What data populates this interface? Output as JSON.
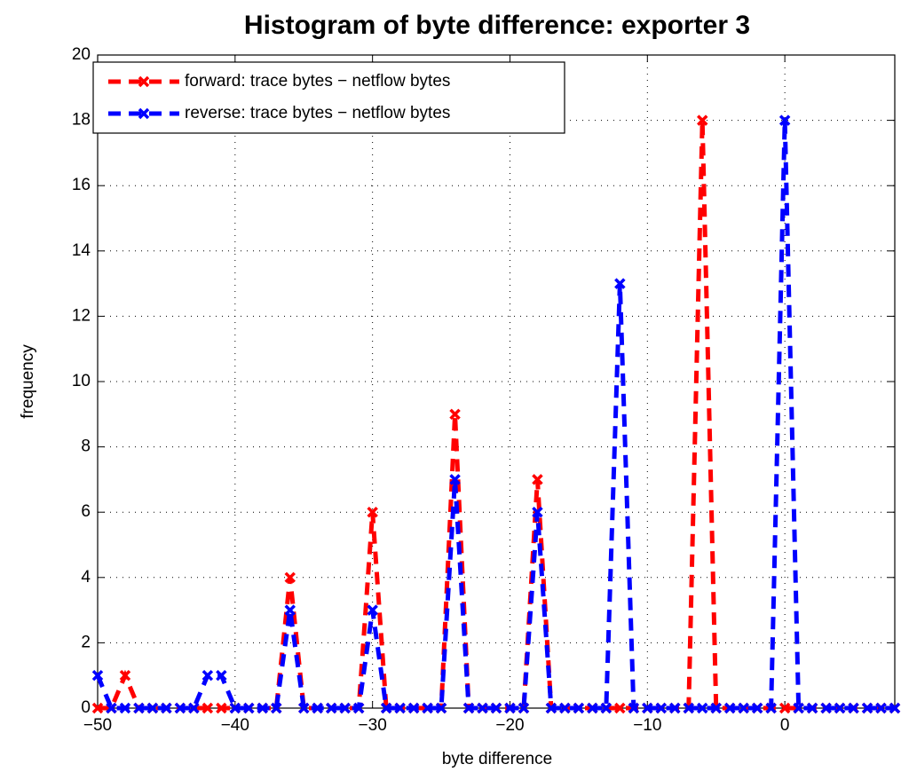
{
  "chart_data": {
    "type": "line",
    "title": "Histogram of byte difference: exporter 3",
    "x_label": "byte difference",
    "y_label": "frequency",
    "x": [
      -50,
      -49,
      -48,
      -47,
      -46,
      -45,
      -44,
      -43,
      -42,
      -41,
      -40,
      -39,
      -38,
      -37,
      -36,
      -35,
      -34,
      -33,
      -32,
      -31,
      -30,
      -29,
      -28,
      -27,
      -26,
      -25,
      -24,
      -23,
      -22,
      -21,
      -20,
      -19,
      -18,
      -17,
      -16,
      -15,
      -14,
      -13,
      -12,
      -11,
      -10,
      -9,
      -8,
      -7,
      -6,
      -5,
      -4,
      -3,
      -2,
      -1,
      0,
      1,
      2,
      3,
      4,
      5,
      6,
      7,
      8
    ],
    "series": [
      {
        "name": "forward: trace bytes − netflow bytes",
        "color": "#ff0000",
        "values": [
          0,
          0,
          1,
          0,
          0,
          0,
          0,
          0,
          0,
          0,
          0,
          0,
          0,
          0,
          4,
          0,
          0,
          0,
          0,
          0,
          6,
          0,
          0,
          0,
          0,
          0,
          9,
          0,
          0,
          0,
          0,
          0,
          7,
          0,
          0,
          0,
          0,
          0,
          0,
          0,
          0,
          0,
          0,
          0,
          18,
          0,
          0,
          0,
          0,
          0,
          0,
          0,
          0,
          0,
          0,
          0,
          0,
          0,
          0
        ]
      },
      {
        "name": "reverse: trace bytes − netflow bytes",
        "color": "#0000ff",
        "values": [
          1,
          0,
          0,
          0,
          0,
          0,
          0,
          0,
          1,
          1,
          0,
          0,
          0,
          0,
          3,
          0,
          0,
          0,
          0,
          0,
          3,
          0,
          0,
          0,
          0,
          0,
          7,
          0,
          0,
          0,
          0,
          0,
          6,
          0,
          0,
          0,
          0,
          0,
          13,
          0,
          0,
          0,
          0,
          0,
          0,
          0,
          0,
          0,
          0,
          0,
          18,
          0,
          0,
          0,
          0,
          0,
          0,
          0,
          0
        ]
      }
    ],
    "xlim": [
      -50,
      8
    ],
    "ylim": [
      0,
      20
    ],
    "xticks": [
      {
        "value": -50,
        "label": "−50"
      },
      {
        "value": -40,
        "label": "−40"
      },
      {
        "value": -30,
        "label": "−30"
      },
      {
        "value": -20,
        "label": "−20"
      },
      {
        "value": -10,
        "label": "−10"
      },
      0
    ],
    "yticks": [
      0,
      2,
      4,
      6,
      8,
      10,
      12,
      14,
      16,
      18,
      20
    ],
    "grid": true,
    "legend": "upper left"
  }
}
